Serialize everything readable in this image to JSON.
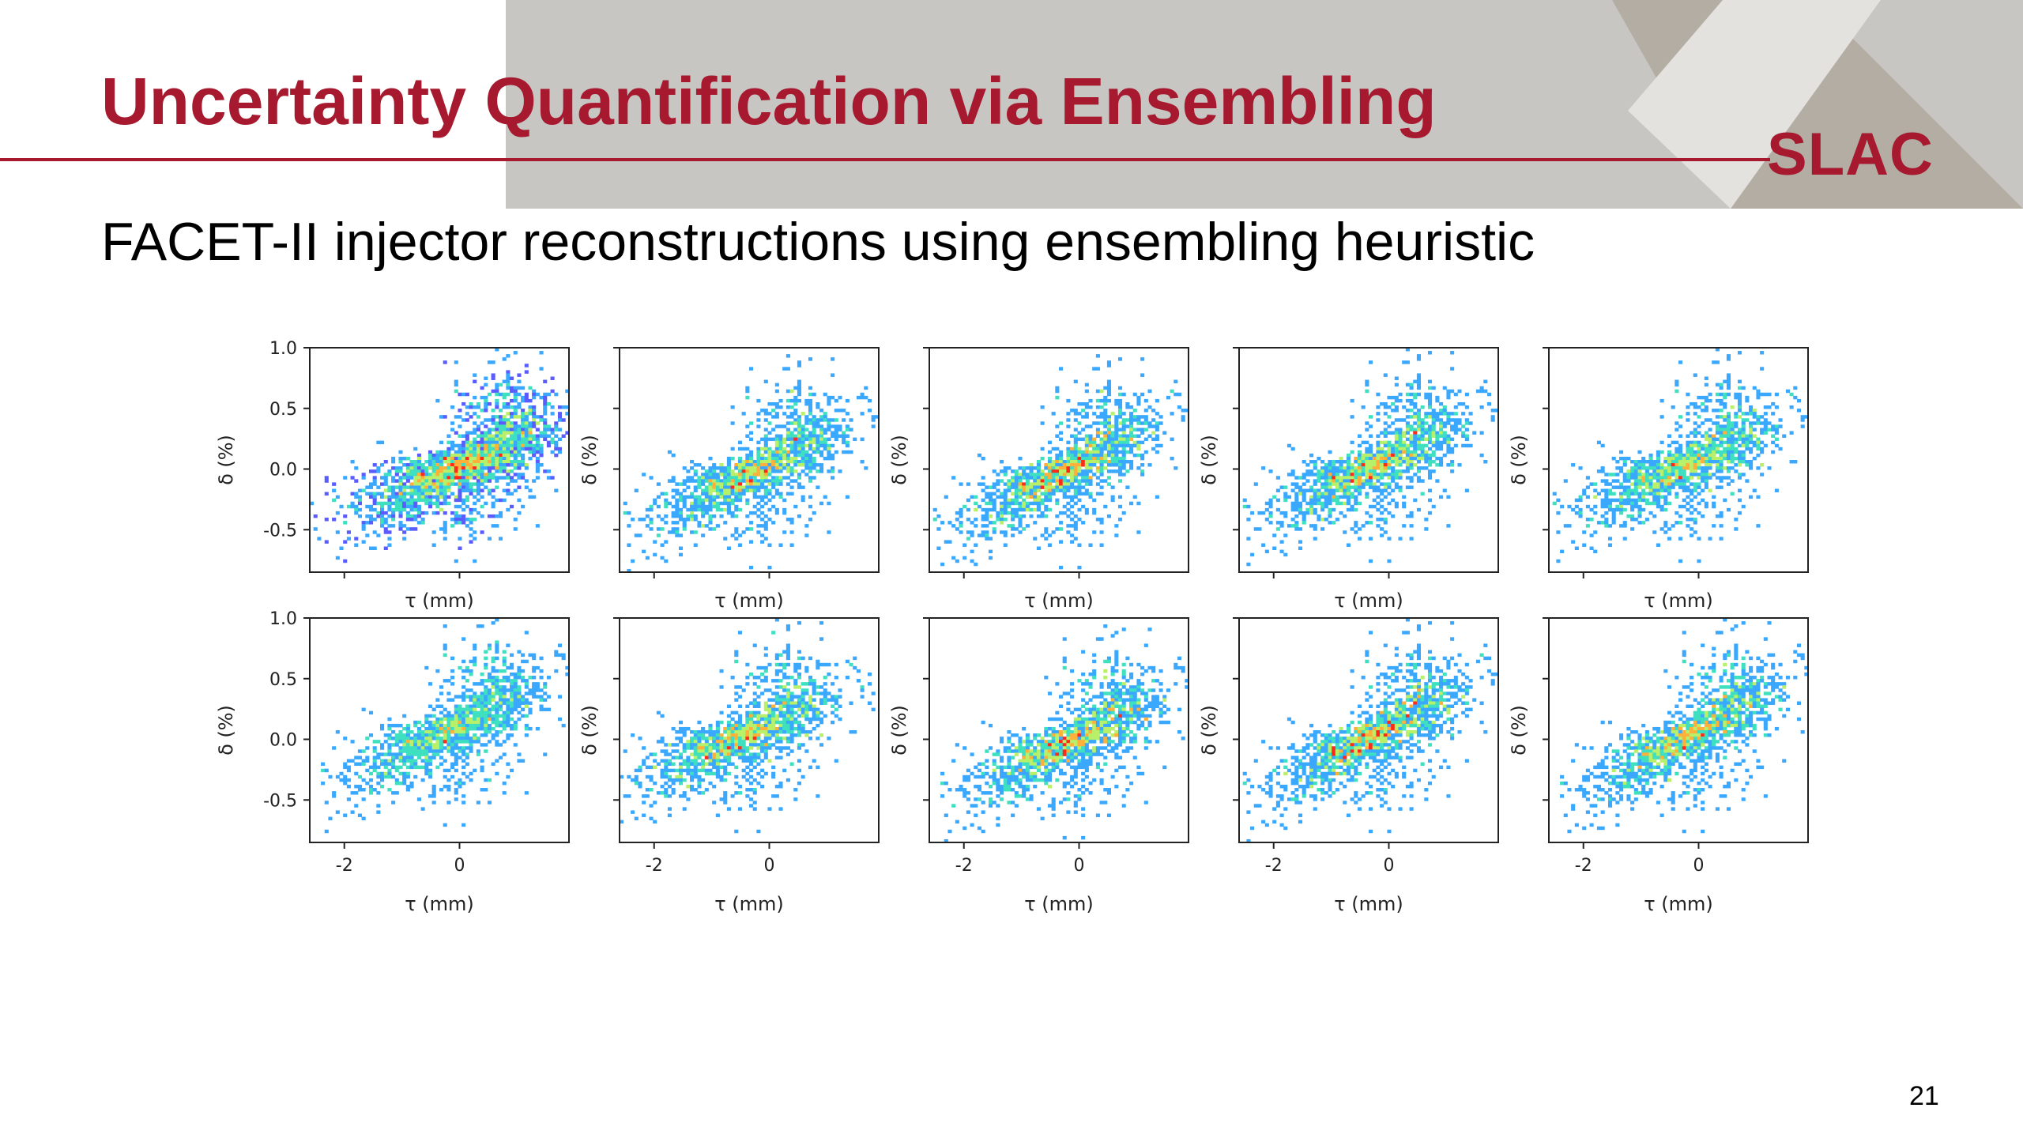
{
  "slide": {
    "title": "Uncertainty Quantification via Ensembling",
    "subtitle": "FACET-II injector reconstructions using ensembling heuristic",
    "logo_text": "SLAC",
    "page_number": "21",
    "brand_color": "#a6192e",
    "banner_color": "#c8c6c3"
  },
  "chart_data": {
    "type": "heatmap",
    "layout": {
      "rows": 2,
      "cols": 5
    },
    "xlabel": "τ (mm)",
    "ylabel": "δ (%)",
    "xlim": [
      -2.6,
      1.9
    ],
    "ylim": [
      -0.85,
      1.0
    ],
    "x_ticks": [
      -2,
      0
    ],
    "x_tick_labels": [
      "-2",
      "0"
    ],
    "y_ticks": [
      1.0,
      0.5,
      0.0,
      -0.5
    ],
    "y_tick_labels": [
      "1.0",
      "0.5",
      "0.0",
      "-0.5"
    ],
    "colormap": "rainbow",
    "panels": [
      {
        "cx": -0.1,
        "cy": 0.0,
        "slope": 0.19
      },
      {
        "cx": -0.4,
        "cy": -0.05,
        "slope": 0.22
      },
      {
        "cx": -0.4,
        "cy": -0.05,
        "slope": 0.24
      },
      {
        "cx": -0.4,
        "cy": 0.0,
        "slope": 0.22
      },
      {
        "cx": -0.4,
        "cy": 0.0,
        "slope": 0.2
      },
      {
        "cx": -0.3,
        "cy": 0.05,
        "slope": 0.22
      },
      {
        "cx": -0.6,
        "cy": 0.0,
        "slope": 0.2
      },
      {
        "cx": -0.3,
        "cy": -0.05,
        "slope": 0.22
      },
      {
        "cx": -0.4,
        "cy": 0.0,
        "slope": 0.24
      },
      {
        "cx": -0.3,
        "cy": 0.0,
        "slope": 0.25
      }
    ]
  }
}
